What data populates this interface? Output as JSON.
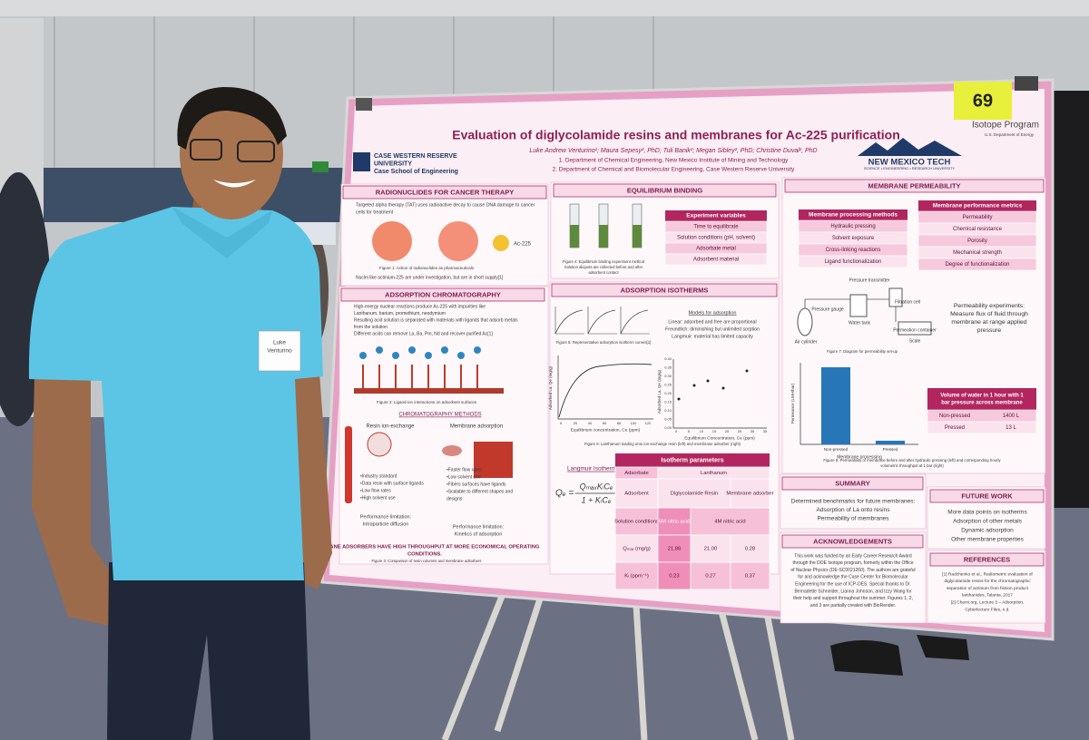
{
  "poster": {
    "number": "69",
    "title": "Evaluation of diglycolamide resins and membranes for Ac-225 purification",
    "authors": "Luke Andrew Venturino¹;  Maura Sepesy², PhD; Tuli Banik²; Megan Sibley², PhD; Christine Duval², PhD",
    "affiliations": [
      "1. Department of Chemical Engineering, New Mexico Institute of Mining and Technology",
      "2. Department of Chemical and Biomolecular Engineering, Case Western Reserve University"
    ],
    "cwru": [
      "CASE WESTERN RESERVE",
      "UNIVERSITY",
      "Case School of Engineering"
    ],
    "isotope": [
      "Isotope Program",
      "U.S. Department of Energy"
    ],
    "nmt": [
      "NEW MEXICO TECH",
      "SCIENCE • ENGINEERING • RESEARCH UNIVERSITY"
    ],
    "radionuclides": {
      "heading": "RADIONUCLIDES FOR CANCER THERAPY",
      "bullets": [
        "Targeted alpha therapy (TAT) uses radioactive decay to cause DNA damage to cancer",
        "cells for treatment"
      ],
      "isotope_label": "Ac-225",
      "caption": "Figure 1: Action of radionuclides as pharmaceuticals",
      "note": "Nuclei like actinium-225 are under investigation, but are in short supply[1]"
    },
    "chromatography": {
      "heading": "ADSORPTION CHROMATOGRAPHY",
      "bullets": [
        "High-energy nuclear reactions produce Ac-225 with impurities like",
        "Lanthanum, barium, promethium, neodymium",
        "Resulting acid solution is separated with materials with ligands that adsorb metals",
        "from the solution",
        "Different acids can remove La, Ba, Pm, Nd and recover purified Ac[1]"
      ],
      "caption": "Figure 2: Ligand-ion interactions on adsorbent surfaces",
      "methods": "CHROMATOGRAPHY METHODS",
      "resin": {
        "title": "Resin ion-exchange",
        "bullets": [
          "•Industry standard",
          "•Data resin with surface ligands",
          "•Low flow rates",
          "•High solvent use"
        ],
        "limitation": [
          "Performance limitation:",
          "Intraparticle diffusion"
        ]
      },
      "membrane": {
        "title": "Membrane adsorption",
        "bullets": [
          "•Faster flow rates",
          "•Low solvent use",
          "•Fibers surfaces have ligands",
          "•Scalable to different shapes and",
          "designs"
        ],
        "limitation": [
          "Performance limitation:",
          "Kinetics of adsorption"
        ]
      },
      "conclusion": [
        "MEMBRANE ADSORBERS HAVE HIGH THROUGHPUT AT MORE ECONOMICAL OPERATING",
        "CONDITIONS."
      ],
      "caption2": "Figure 3: Comparison of resin columns and membrane adsorbers"
    },
    "equilibrium": {
      "heading": "EQUILIBRIUM BINDING",
      "caption": [
        "Figure 4: Equilibrium binding experiment method",
        "Solution aliquots are collected before and after",
        "adsorbent contact"
      ],
      "table": {
        "header": "Experiment variables",
        "rows": [
          "Time to equilibrate",
          "Solution conditions (pH, solvent)",
          "Adsorbate metal",
          "Adsorbent material"
        ]
      }
    },
    "isotherms": {
      "heading": "ADSORPTION ISOTHERMS",
      "caption": "Figure 5: Representative adsorption isotherm curves[1]",
      "models": {
        "title": "Models for adsorption",
        "lines": [
          "Linear: adsorbed and free are proportional",
          "Freundlich: diminishing but unlimited sorption",
          "Langmuir: material has limited capacity"
        ]
      },
      "plot1": {
        "ylabel": "Adsorbed La, Qe (mg/g)",
        "xlabel": "Equilibrium concentration, Ce (ppm)",
        "xticks": [
          "0",
          "20",
          "40",
          "60",
          "80",
          "100",
          "120"
        ]
      },
      "plot2": {
        "ylabel": "Adsorbed La, Qe (mg/g)",
        "xlabel": "Equilibrium Concentration, Ce (ppm)",
        "xticks": [
          "0",
          "5",
          "10",
          "15",
          "20",
          "25",
          "30",
          "35"
        ],
        "yticks": [
          "0.00",
          "0.05",
          "0.10",
          "0.15",
          "0.20",
          "0.25",
          "0.30",
          "0.35",
          "0.40"
        ]
      },
      "caption2": "Figure 6: Lanthanum loading onto ion-exchange resin (left) and membrane adsorber (right)"
    },
    "langmuir": {
      "title": "Langmuir Isotherm",
      "lhs": "Qₑ =",
      "numerator": "QₘₐₓKₗCₑ",
      "denominator": "1 + KₗCₑ"
    },
    "isotherm_table": {
      "header": "Isotherm parameters",
      "adsorbate": [
        "Adsorbate",
        "Lanthanum"
      ],
      "adsorbent": [
        "Adsorbent",
        "Diglycolamide Resin",
        "Membrane adsorber"
      ],
      "conditions": [
        "Solution conditions",
        "6M nitric acid",
        "4M nitric acid"
      ],
      "qmax": [
        "Qₘₐₓ (mg/g)",
        "21.88",
        "21.00",
        "0.28"
      ],
      "kl": [
        "Kₗ (ppm⁻¹)",
        "0.23",
        "0.27",
        "0.37"
      ]
    },
    "permeability": {
      "heading": "MEMBRANE PERMEABILITY",
      "methods": {
        "header": "Membrane processing methods",
        "rows": [
          "Hydraulic pressing",
          "Solvent exposure",
          "Cross-linking reactions",
          "Ligand functionalization"
        ]
      },
      "metrics": {
        "header": "Membrane performance metrics",
        "rows": [
          "Permeability",
          "Chemical resistance",
          "Porosity",
          "Mechanical strength",
          "Degree of functionalization"
        ]
      },
      "diagram": [
        "Pressure transmitter",
        "Pressure gauge",
        "Water tank",
        "Filtration cell",
        "Air cylinder",
        "Permeation container",
        "Scale"
      ],
      "caption": "Figure 7: Diagram for permeability set-up",
      "experiments": [
        "Permeability experiments:",
        "Measure flux of fluid through",
        "membrane at range applied",
        "pressure"
      ],
      "chart": {
        "ylabel": "Permeance (LMH/bar)",
        "xlabel": "Membrane processing",
        "categories": [
          "Non-pressed",
          "Pressed"
        ]
      },
      "volume": {
        "header": [
          "Volume of water in 1 hour with 1",
          "bar pressure across membrane"
        ],
        "rows": [
          [
            "Non-pressed",
            "1400 L"
          ],
          [
            "Pressed",
            "13 L"
          ]
        ]
      },
      "caption2": [
        "Figure 8: Permeability of membrane before and after hydraulic pressing (left) and corresponding hourly",
        "volumetric throughput at 1 bar (right)"
      ]
    },
    "summary": {
      "heading": "SUMMARY",
      "lines": [
        "Determined benchmarks for future membranes:",
        "Adsorption of La onto resins",
        "Permeability of membranes"
      ]
    },
    "future": {
      "heading": "FUTURE WORK",
      "lines": [
        "More data points on isotherms",
        "Adsorption of other metals",
        "Dynamic adsorption",
        "Other membrane properties"
      ]
    },
    "acknowledgements": {
      "heading": "ACKNOWLEDGEMENTS",
      "lines": [
        "This work was funded by an Early Career Research Award",
        "through the DOE Isotope program, formerly within the Office",
        "of Nuclear Physics (DE-SC0021260). The authors are grateful",
        "for and acknowledge the Case Center for Biomolecular",
        "Engineering for the use of ICP-OES. Special thanks to Dr.",
        "Bernadette Schneider, Lianna Johnson, and Izzy Wang for",
        "their help and support throughout the summer. Figures 1, 2,",
        "and 3 are partially created with BioRender."
      ]
    },
    "references": {
      "heading": "REFERENCES",
      "lines": [
        "[1] Radchenko et al., Radiometric evaluation of",
        "diglycolamide resins for the chromatographic",
        "separation of actinium from fission product",
        "lanthanides, Talanta, 2017",
        "[2] Chemi.org, Lecture 3 – Adsorption,",
        "Cyberlecture Files, n.d."
      ]
    }
  },
  "badge": [
    "Luke",
    "Venturino"
  ]
}
